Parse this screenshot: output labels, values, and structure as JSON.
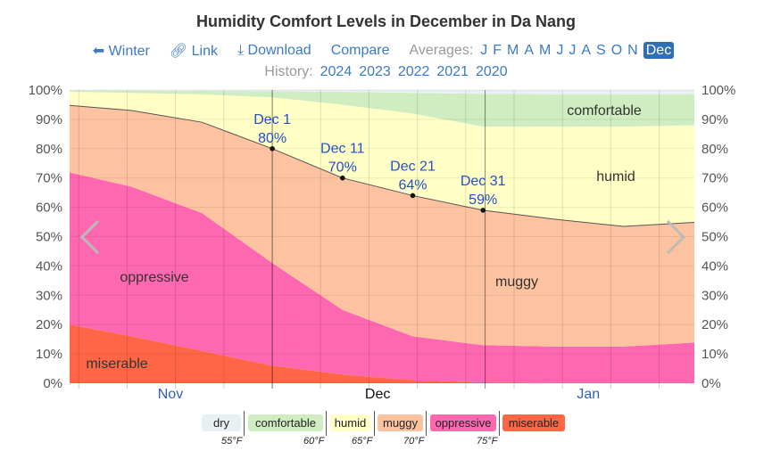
{
  "title": "Humidity Comfort Levels in December in Da Nang",
  "nav": {
    "back": "Winter",
    "link": "Link",
    "download": "Download",
    "compare": "Compare",
    "averages_label": "Averages:",
    "months": [
      "J",
      "F",
      "M",
      "A",
      "M",
      "J",
      "J",
      "A",
      "S",
      "O",
      "N",
      "Dec"
    ],
    "selected_month": "Dec"
  },
  "history": {
    "label": "History:",
    "years": [
      "2024",
      "2023",
      "2022",
      "2021",
      "2020"
    ]
  },
  "legend": {
    "items": [
      {
        "label": "dry",
        "color": "#e8f0f4"
      },
      {
        "label": "comfortable",
        "color": "#cfedc1"
      },
      {
        "label": "humid",
        "color": "#ffffc6"
      },
      {
        "label": "muggy",
        "color": "#fdc3a0"
      },
      {
        "label": "oppressive",
        "color": "#fe68b0"
      },
      {
        "label": "miserable",
        "color": "#ff6645"
      }
    ],
    "thresholds": [
      "55°F",
      "60°F",
      "65°F",
      "70°F",
      "75°F"
    ]
  },
  "chart_data": {
    "type": "area",
    "stacked": true,
    "x": [
      "Nov 1",
      "Nov 11",
      "Nov 21",
      "Dec 1",
      "Dec 11",
      "Dec 21",
      "Dec 31",
      "Jan 10",
      "Jan 20",
      "Jan 31"
    ],
    "series": [
      {
        "name": "miserable",
        "color": "#ff6645",
        "values": [
          20.5,
          16,
          11,
          6,
          3,
          1,
          0.3,
          0,
          0,
          0
        ]
      },
      {
        "name": "oppressive",
        "color": "#fe68b0",
        "values": [
          52,
          51,
          47,
          35,
          22,
          15,
          12.7,
          12.5,
          12.5,
          14
        ]
      },
      {
        "name": "muggy",
        "color": "#fdc3a0",
        "values": [
          22.5,
          26,
          31,
          39,
          45,
          48,
          46,
          43.5,
          41,
          41
        ]
      },
      {
        "name": "humid",
        "color": "#ffffc6",
        "values": [
          4.5,
          6,
          9.5,
          17.5,
          25,
          28,
          28.5,
          31.5,
          34,
          33
        ]
      },
      {
        "name": "comfortable",
        "color": "#cfedc1",
        "values": [
          0.3,
          0.8,
          1.2,
          2.1,
          4.4,
          7,
          11.2,
          11,
          11,
          10.6
        ]
      },
      {
        "name": "dry",
        "color": "#e8f0f4",
        "values": [
          0.2,
          0.2,
          0.3,
          0.4,
          0.6,
          1,
          1.3,
          1.5,
          1.5,
          1.4
        ]
      }
    ],
    "ylim": [
      0,
      100
    ],
    "yticks": [
      "0%",
      "10%",
      "20%",
      "30%",
      "40%",
      "50%",
      "60%",
      "70%",
      "80%",
      "90%",
      "100%"
    ],
    "xticks": [
      "Nov",
      "Dec",
      "Jan"
    ],
    "annotations": [
      {
        "date": "Dec 1",
        "value": "80%"
      },
      {
        "date": "Dec 11",
        "value": "70%"
      },
      {
        "date": "Dec 21",
        "value": "64%"
      },
      {
        "date": "Dec 31",
        "value": "59%"
      }
    ],
    "area_labels": [
      "comfortable",
      "humid",
      "muggy",
      "oppressive",
      "miserable"
    ],
    "grid": true
  }
}
